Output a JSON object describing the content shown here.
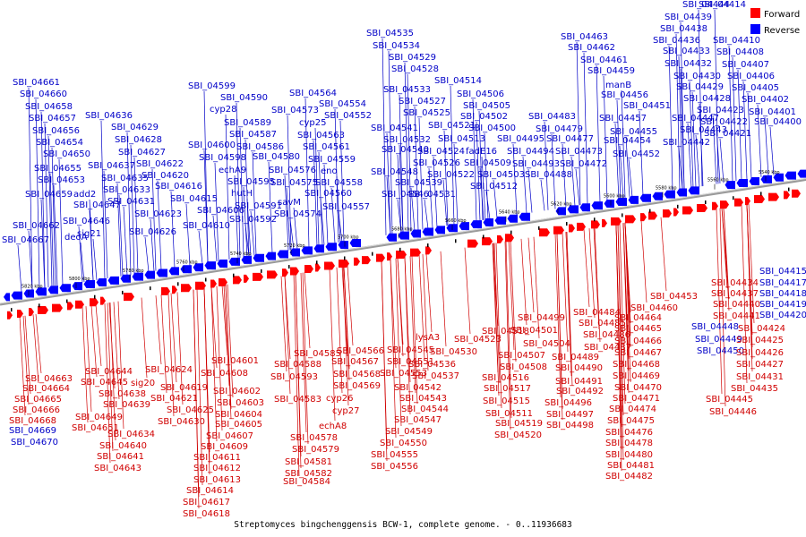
{
  "caption": "Streptomyces bingchenggensis BCW-1, complete genome. - 0..11936683",
  "legend": [
    {
      "label": "Forward",
      "color": "#ff0000"
    },
    {
      "label": "Reverse",
      "color": "#0000ff"
    }
  ],
  "colors": {
    "forward": "#ff0000",
    "reverse": "#0000ff",
    "forward_label": "#d00000",
    "reverse_label": "#0000c8",
    "backbone": "#8a8a8a"
  },
  "ticks": [
    "5820 kbp",
    "5800 kbp",
    "5780 kbp",
    "5760 kbp",
    "5740 kbp",
    "5720 kbp",
    "5700 kbp",
    "5680 kbp",
    "5660 kbp",
    "5640 kbp",
    "5620 kbp",
    "5600 kbp",
    "5580 kbp",
    "5560 kbp",
    "5540 kbp"
  ],
  "reverse_labels": [
    "SBI_04661",
    "SBI_04660",
    "SBI_04658",
    "SBI_04657",
    "SBI_04656",
    "SBI_04654",
    "SBI_04650",
    "SBI_04655",
    "SBI_04653",
    "SBI_04659",
    "SBI_04647",
    "SBI_04662",
    "SBI_04667",
    "SBI_04636",
    "SBI_04629",
    "SBI_04628",
    "SBI_04627",
    "SBI_04637",
    "SBI_04635",
    "SBI_04633",
    "SBI_04631",
    "add2",
    "deoA",
    "SBI_04646",
    "sig21",
    "SBI_04622",
    "SBI_04620",
    "SBI_04616",
    "SBI_04615",
    "SBI_04623",
    "SBI_04626",
    "SBI_04610",
    "SBI_04606",
    "SBI_04599",
    "SBI_04590",
    "cyp28",
    "SBI_04589",
    "SBI_04587",
    "SBI_04600",
    "SBI_04598",
    "echA9",
    "SBI_04595",
    "hutH",
    "SBI_04591",
    "SBI_04592",
    "SBI_04586",
    "SBI_04580",
    "SBI_04564",
    "SBI_04573",
    "SBI_04554",
    "cyp25",
    "SBI_04552",
    "SBI_04563",
    "SBI_04561",
    "SBI_04559",
    "SBI_04576",
    "eno",
    "SBI_04575",
    "SBI_04558",
    "savM",
    "SBI_04560",
    "SBI_04574",
    "SBI_04557",
    "SBI_04535",
    "SBI_04534",
    "SBI_04529",
    "SBI_04528",
    "SBI_04533",
    "SBI_04527",
    "SBI_04525",
    "SBI_04541",
    "SBI_04532",
    "SBI_04540",
    "SBI_04548",
    "SBI_04539",
    "SBI_04546",
    "SBI_04514",
    "SBI_04506",
    "SBI_04505",
    "SBI_04521",
    "SBI_04502",
    "SBI_04500",
    "SBI_04513",
    "SBI_04524",
    "SBI_04526",
    "SBI_04522",
    "SBI_04531",
    "fadE16",
    "SBI_04509",
    "SBI_04512",
    "SBI_04503",
    "SBI_04495",
    "SBI_04494",
    "SBI_04493",
    "SBI_04488",
    "SBI_04483",
    "SBI_04479",
    "SBI_04477",
    "SBI_04473",
    "SBI_04472",
    "SBI_04463",
    "SBI_04462",
    "SBI_04461",
    "SBI_04459",
    "manB",
    "SBI_04456",
    "SBI_04451",
    "SBI_04457",
    "SBI_04455",
    "SBI_04454",
    "SBI_04452",
    "SBI_04444",
    "SBI_04439",
    "SBI_04438",
    "SBI_04436",
    "SBI_04433",
    "SBI_04432",
    "SBI_04430",
    "SBI_04429",
    "SBI_04428",
    "SBI_04447",
    "SBI_04443",
    "SBI_04442",
    "SBI_04423",
    "SBI_04422",
    "SBI_04421",
    "SBI_04414",
    "SBI_04410",
    "SBI_04408",
    "SBI_04407",
    "SBI_04406",
    "SBI_04405",
    "SBI_04402",
    "SBI_04401",
    "SBI_04400",
    "SBI_04415",
    "SBI_04417",
    "SBI_04418",
    "SBI_04419",
    "SBI_04420",
    "SBI_04448",
    "SBI_04449",
    "SBI_04450",
    "SBI_04669",
    "SBI_04670"
  ],
  "forward_labels": [
    "SBI_04663",
    "SBI_04664",
    "SBI_04665",
    "SBI_04666",
    "SBI_04668",
    "SBI_04644",
    "SBI_04645",
    "SBI_04638",
    "SBI_04639",
    "SBI_04649",
    "SBI_04651",
    "sig20",
    "SBI_04624",
    "SBI_04619",
    "SBI_04621",
    "SBI_04625",
    "SBI_04630",
    "SBI_04634",
    "SBI_04640",
    "SBI_04641",
    "SBI_04643",
    "SBI_04601",
    "SBI_04608",
    "SBI_04602",
    "SBI_04603",
    "SBI_04604",
    "SBI_04605",
    "SBI_04607",
    "SBI_04609",
    "SBI_04611",
    "SBI_04612",
    "SBI_04613",
    "SBI_04614",
    "SBI_04617",
    "SBI_04618",
    "SBI_04585",
    "SBI_04588",
    "SBI_04593",
    "SBI_04583",
    "SBI_04578",
    "SBI_04579",
    "SBI_04581",
    "SBI_04582",
    "SBI_04584",
    "SBI_04566",
    "SBI_04567",
    "SBI_04568",
    "SBI_04569",
    "cyp26",
    "cyp27",
    "echA8",
    "lysA3",
    "SBI_04545",
    "SBI_04551",
    "SBI_04553",
    "SBI_04536",
    "SBI_04537",
    "SBI_04542",
    "SBI_04543",
    "SBI_04544",
    "SBI_04547",
    "SBI_04549",
    "SBI_04550",
    "SBI_04555",
    "SBI_04556",
    "SBI_04518",
    "SBI_04523",
    "SBI_04530",
    "SBI_04516",
    "SBI_04517",
    "SBI_04515",
    "SBI_04511",
    "SBI_04519",
    "SBI_04520",
    "SBI_04499",
    "SBI_04501",
    "SBI_04504",
    "SBI_04507",
    "SBI_04508",
    "SBI_04489",
    "SBI_04490",
    "SBI_04491",
    "SBI_04492",
    "SBI_04496",
    "SBI_04497",
    "SBI_04498",
    "SBI_04484",
    "SBI_04485",
    "SBI_04486",
    "SBI_04487",
    "SBI_04464",
    "SBI_04465",
    "SBI_04466",
    "SBI_04467",
    "SBI_04468",
    "SBI_04469",
    "SBI_04470",
    "SBI_04471",
    "SBI_04474",
    "SBI_04475",
    "SBI_04476",
    "SBI_04478",
    "SBI_04480",
    "SBI_04481",
    "SBI_04482",
    "SBI_04460",
    "SBI_04453",
    "SBI_04434",
    "SBI_04437",
    "SBI_04440",
    "SBI_04441",
    "SBI_04424",
    "SBI_04425",
    "SBI_04426",
    "SBI_04427",
    "SBI_04431",
    "SBI_04435",
    "SBI_04445",
    "SBI_04446"
  ]
}
